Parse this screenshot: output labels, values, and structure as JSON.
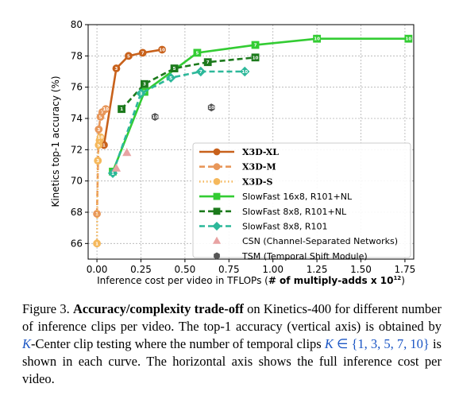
{
  "chart_data": {
    "type": "line",
    "xlabel_prefix": "Inference cost per video in TFLOPs (",
    "xlabel_bold": "# of multiply-adds x 10",
    "xlabel_sup": "12",
    "xlabel_suffix": ")",
    "ylabel": "Kinetics top-1 accuracy (%)",
    "xlim": [
      -0.05,
      1.8
    ],
    "ylim": [
      65,
      80
    ],
    "xticks": [
      "0.00",
      "0.25",
      "0.50",
      "0.75",
      "1.00",
      "1.25",
      "1.50",
      "1.75"
    ],
    "yticks": [
      "66",
      "68",
      "70",
      "72",
      "74",
      "76",
      "78",
      "80"
    ],
    "grid": true,
    "legend_position": "lower-right",
    "series": [
      {
        "name": "X3D-XL",
        "color": "#c8611b",
        "style": "solid",
        "marker": "circle",
        "serif": true,
        "points": [
          [
            0.04,
            72.3,
            "1"
          ],
          [
            0.11,
            77.2,
            "3"
          ],
          [
            0.18,
            78.0,
            "5"
          ],
          [
            0.26,
            78.2,
            "7"
          ],
          [
            0.37,
            78.4,
            "10"
          ]
        ]
      },
      {
        "name": "X3D-M",
        "color": "#e8975a",
        "style": "dashed",
        "marker": "circle",
        "serif": true,
        "points": [
          [
            0.0,
            67.9,
            "1"
          ],
          [
            0.01,
            73.3,
            "3"
          ],
          [
            0.02,
            74.1,
            "5"
          ],
          [
            0.03,
            74.4,
            "7"
          ],
          [
            0.05,
            74.6,
            "10"
          ]
        ]
      },
      {
        "name": "X3D-S",
        "color": "#f5b85c",
        "style": "dotted",
        "marker": "circle",
        "serif": true,
        "points": [
          [
            0.0,
            66.0,
            "1"
          ],
          [
            0.005,
            71.3,
            "3"
          ],
          [
            0.01,
            72.3,
            "5"
          ],
          [
            0.015,
            72.6,
            "7"
          ],
          [
            0.02,
            72.8,
            "10"
          ]
        ]
      },
      {
        "name": "SlowFast 16x8, R101+NL",
        "color": "#33cc33",
        "style": "solid",
        "marker": "square",
        "serif": false,
        "points": [
          [
            0.09,
            70.6,
            "1"
          ],
          [
            0.27,
            75.7,
            "3"
          ],
          [
            0.57,
            78.2,
            "5"
          ],
          [
            0.9,
            78.7,
            "7"
          ],
          [
            1.25,
            79.1,
            "10"
          ],
          [
            1.77,
            79.1,
            "10"
          ]
        ]
      },
      {
        "name": "SlowFast 8x8, R101+NL",
        "color": "#1c7a1c",
        "style": "dashed",
        "marker": "square",
        "serif": false,
        "points": [
          [
            0.14,
            74.6,
            "1"
          ],
          [
            0.27,
            76.2,
            "3"
          ],
          [
            0.44,
            77.2,
            "5"
          ],
          [
            0.63,
            77.6,
            "7"
          ],
          [
            0.9,
            77.9,
            "10"
          ]
        ]
      },
      {
        "name": "SlowFast 8x8, R101",
        "color": "#2db89a",
        "style": "dashed",
        "marker": "diamond",
        "serif": false,
        "points": [
          [
            0.09,
            70.5,
            "1"
          ],
          [
            0.25,
            75.6,
            "3"
          ],
          [
            0.42,
            76.6,
            "5"
          ],
          [
            0.59,
            77.0,
            "7"
          ],
          [
            0.84,
            77.0,
            "10"
          ]
        ]
      },
      {
        "name": "CSN (Channel-Separated Networks)",
        "color": "#e8a3a3",
        "style": "none",
        "marker": "triangle",
        "serif": false,
        "points": [
          [
            0.11,
            70.8,
            ""
          ],
          [
            0.17,
            71.8,
            ""
          ]
        ]
      },
      {
        "name": "TSM (Temporal Shift Module)",
        "color": "#555555",
        "style": "none",
        "marker": "hexagon",
        "serif": false,
        "points": [
          [
            0.33,
            74.1,
            "10"
          ],
          [
            0.65,
            74.7,
            "10"
          ]
        ]
      }
    ]
  },
  "caption": {
    "label": "Figure 3. ",
    "title": "Accuracy/complexity trade-off",
    "text1": " on Kinetics-400 for different number of inference clips per video. The top-1 accuracy (vertical axis) is obtained by ",
    "k1": "K",
    "text2": "-Center clip testing where the number of temporal clips ",
    "k2": "K",
    "set": " ∈ {1, 3, 5, 7, 10}",
    "text3": " is shown in each curve. The horizontal axis shows the full inference cost per video."
  }
}
